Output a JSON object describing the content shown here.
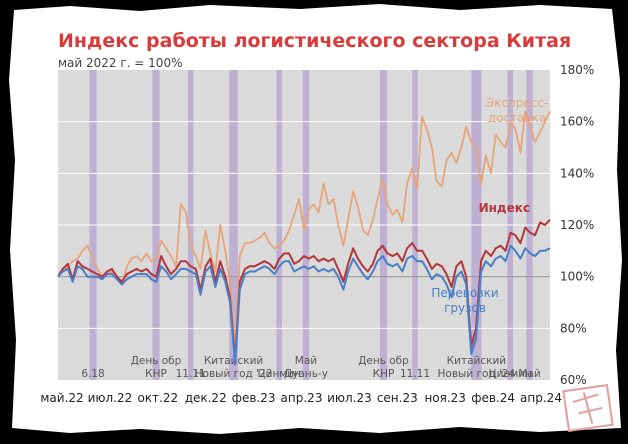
{
  "colors": {
    "title": "#d93a3a",
    "plot_bg": "#dadada",
    "holiday_band": "#b7a8d1",
    "express": "#e6a47a",
    "index": "#b2363b",
    "freight": "#4a7fc6",
    "grid": "#ffffff",
    "stamp": "#e0a0a0"
  },
  "chart_data": {
    "type": "line",
    "title": "Индекс работы логистического сектора Китая",
    "subtitle": "май 2022 г. = 100%",
    "x_range": [
      "2022-05",
      "2024-06"
    ],
    "x_ticks": [
      "май.22",
      "июл.22",
      "окт.22",
      "дек.22",
      "фев.23",
      "апр.23",
      "июл.23",
      "сен.23",
      "ноя.23",
      "фев.24",
      "апр.24"
    ],
    "y_ticks": [
      "60%",
      "80%",
      "100%",
      "120%",
      "140%",
      "160%",
      "180%"
    ],
    "ylim": [
      60,
      180
    ],
    "y_axis_side": "right",
    "grid": true,
    "series_labels": [
      {
        "key": "express",
        "lines": [
          "Экспресс-",
          "доставка"
        ]
      },
      {
        "key": "index",
        "lines": [
          "Индекс"
        ]
      },
      {
        "key": "freight",
        "lines": [
          "Перевозки",
          "грузов"
        ]
      }
    ],
    "holiday_bands": [
      {
        "x": 0.08,
        "w": 0.018,
        "lines": [
          "6.18"
        ]
      },
      {
        "x": 0.24,
        "w": 0.018,
        "lines": [
          "День обр",
          "КНР"
        ]
      },
      {
        "x": 0.33,
        "w": 0.014,
        "lines": [
          "11.11"
        ]
      },
      {
        "x": 0.435,
        "w": 0.022,
        "lines": [
          "Китайский",
          "Новый год '23"
        ]
      },
      {
        "x": 0.555,
        "w": 0.014,
        "lines": [
          "Цинмин"
        ]
      },
      {
        "x": 0.622,
        "w": 0.016,
        "lines": [
          "Май",
          "Дуань-у"
        ]
      },
      {
        "x": 0.818,
        "w": 0.018,
        "lines": [
          "День обр",
          "КНР"
        ]
      },
      {
        "x": 0.9,
        "w": 0.014,
        "lines": [
          "11.11"
        ]
      },
      {
        "x": 1.05,
        "w": 0.026,
        "lines": [
          "Китайский",
          "Новый год '24"
        ]
      },
      {
        "x": 1.142,
        "w": 0.014,
        "lines": [
          "Цинмин"
        ]
      },
      {
        "x": 1.19,
        "w": 0.016,
        "lines": [
          "Май"
        ]
      }
    ],
    "series": [
      {
        "key": "express",
        "x": [
          0,
          0.012,
          0.025,
          0.037,
          0.05,
          0.062,
          0.075,
          0.087,
          0.1,
          0.112,
          0.125,
          0.137,
          0.15,
          0.162,
          0.175,
          0.187,
          0.2,
          0.212,
          0.225,
          0.237,
          0.25,
          0.262,
          0.275,
          0.287,
          0.3,
          0.312,
          0.325,
          0.337,
          0.35,
          0.362,
          0.375,
          0.387,
          0.4,
          0.412,
          0.425,
          0.437,
          0.45,
          0.462,
          0.475,
          0.487,
          0.5,
          0.512,
          0.525,
          0.537,
          0.55,
          0.562,
          0.575,
          0.587,
          0.6,
          0.612,
          0.625,
          0.637,
          0.65,
          0.662,
          0.675,
          0.687,
          0.7,
          0.712,
          0.725,
          0.737,
          0.75,
          0.762,
          0.775,
          0.787,
          0.8,
          0.812,
          0.825,
          0.837,
          0.85,
          0.862,
          0.875,
          0.887,
          0.9,
          0.912,
          0.925,
          0.937,
          0.95,
          0.962,
          0.975,
          0.987,
          1.0,
          1.012,
          1.025,
          1.037,
          1.05,
          1.062,
          1.075,
          1.087,
          1.1,
          1.112,
          1.125,
          1.137,
          1.15,
          1.162,
          1.175,
          1.187,
          1.2,
          1.212,
          1.225,
          1.237,
          1.25
        ],
        "values": [
          100,
          102,
          104,
          106,
          107,
          110,
          112,
          108,
          103,
          100,
          101,
          102,
          99,
          97,
          104,
          107,
          108,
          106,
          109,
          106,
          107,
          114,
          111,
          108,
          104,
          128,
          125,
          112,
          108,
          103,
          118,
          109,
          102,
          120,
          110,
          98,
          72,
          108,
          113,
          113,
          114,
          115,
          117,
          113,
          111,
          112,
          114,
          118,
          124,
          130,
          118,
          126,
          128,
          125,
          136,
          128,
          130,
          120,
          112,
          122,
          133,
          127,
          118,
          116,
          122,
          130,
          138,
          128,
          124,
          126,
          121,
          136,
          142,
          134,
          162,
          157,
          150,
          137,
          135,
          145,
          148,
          144,
          150,
          158,
          152,
          150,
          136,
          147,
          140,
          155,
          152,
          150,
          160,
          157,
          148,
          164,
          158,
          152,
          156,
          160,
          164
        ]
      },
      {
        "key": "index",
        "x": [
          0,
          0.012,
          0.025,
          0.037,
          0.05,
          0.062,
          0.075,
          0.087,
          0.1,
          0.112,
          0.125,
          0.137,
          0.15,
          0.162,
          0.175,
          0.187,
          0.2,
          0.212,
          0.225,
          0.237,
          0.25,
          0.262,
          0.275,
          0.287,
          0.3,
          0.312,
          0.325,
          0.337,
          0.35,
          0.362,
          0.375,
          0.387,
          0.4,
          0.412,
          0.425,
          0.437,
          0.45,
          0.462,
          0.475,
          0.487,
          0.5,
          0.512,
          0.525,
          0.537,
          0.55,
          0.562,
          0.575,
          0.587,
          0.6,
          0.612,
          0.625,
          0.637,
          0.65,
          0.662,
          0.675,
          0.687,
          0.7,
          0.712,
          0.725,
          0.737,
          0.75,
          0.762,
          0.775,
          0.787,
          0.8,
          0.812,
          0.825,
          0.837,
          0.85,
          0.862,
          0.875,
          0.887,
          0.9,
          0.912,
          0.925,
          0.937,
          0.95,
          0.962,
          0.975,
          0.987,
          1.0,
          1.012,
          1.025,
          1.037,
          1.05,
          1.062,
          1.075,
          1.087,
          1.1,
          1.112,
          1.125,
          1.137,
          1.15,
          1.162,
          1.175,
          1.187,
          1.2,
          1.212,
          1.225,
          1.237,
          1.25
        ],
        "values": [
          100,
          103,
          105,
          99,
          106,
          104,
          103,
          102,
          101,
          100,
          102,
          103,
          100,
          98,
          101,
          102,
          103,
          102,
          103,
          101,
          100,
          108,
          104,
          101,
          103,
          106,
          106,
          104,
          103,
          95,
          104,
          107,
          98,
          106,
          100,
          92,
          68,
          98,
          103,
          104,
          104,
          105,
          106,
          105,
          103,
          107,
          109,
          109,
          105,
          106,
          108,
          107,
          108,
          106,
          107,
          106,
          107,
          103,
          98,
          105,
          111,
          107,
          104,
          102,
          105,
          110,
          112,
          109,
          108,
          109,
          106,
          111,
          113,
          110,
          110,
          107,
          103,
          105,
          104,
          101,
          96,
          104,
          106,
          100,
          73,
          80,
          106,
          110,
          108,
          111,
          112,
          110,
          117,
          116,
          113,
          119,
          117,
          116,
          121,
          120,
          122
        ]
      },
      {
        "key": "freight",
        "x": [
          0,
          0.012,
          0.025,
          0.037,
          0.05,
          0.062,
          0.075,
          0.087,
          0.1,
          0.112,
          0.125,
          0.137,
          0.15,
          0.162,
          0.175,
          0.187,
          0.2,
          0.212,
          0.225,
          0.237,
          0.25,
          0.262,
          0.275,
          0.287,
          0.3,
          0.312,
          0.325,
          0.337,
          0.35,
          0.362,
          0.375,
          0.387,
          0.4,
          0.412,
          0.425,
          0.437,
          0.45,
          0.462,
          0.475,
          0.487,
          0.5,
          0.512,
          0.525,
          0.537,
          0.55,
          0.562,
          0.575,
          0.587,
          0.6,
          0.612,
          0.625,
          0.637,
          0.65,
          0.662,
          0.675,
          0.687,
          0.7,
          0.712,
          0.725,
          0.737,
          0.75,
          0.762,
          0.775,
          0.787,
          0.8,
          0.812,
          0.825,
          0.837,
          0.85,
          0.862,
          0.875,
          0.887,
          0.9,
          0.912,
          0.925,
          0.937,
          0.95,
          0.962,
          0.975,
          0.987,
          1.0,
          1.012,
          1.025,
          1.037,
          1.05,
          1.062,
          1.075,
          1.087,
          1.1,
          1.112,
          1.125,
          1.137,
          1.15,
          1.162,
          1.175,
          1.187,
          1.2,
          1.212,
          1.225,
          1.237,
          1.25
        ],
        "values": [
          100,
          102,
          103,
          98,
          104,
          103,
          100,
          100,
          100,
          99,
          101,
          101,
          99,
          97,
          99,
          100,
          101,
          101,
          101,
          99,
          98,
          104,
          102,
          99,
          101,
          103,
          103,
          102,
          101,
          93,
          102,
          104,
          96,
          103,
          98,
          90,
          66,
          95,
          101,
          102,
          102,
          103,
          104,
          103,
          101,
          104,
          106,
          106,
          102,
          103,
          104,
          103,
          104,
          102,
          103,
          102,
          103,
          100,
          95,
          102,
          107,
          104,
          101,
          99,
          102,
          106,
          108,
          105,
          104,
          105,
          102,
          107,
          108,
          106,
          106,
          103,
          99,
          101,
          100,
          97,
          92,
          100,
          102,
          97,
          70,
          76,
          102,
          106,
          104,
          107,
          108,
          106,
          112,
          110,
          107,
          111,
          109,
          108,
          110,
          110,
          111
        ]
      }
    ]
  }
}
